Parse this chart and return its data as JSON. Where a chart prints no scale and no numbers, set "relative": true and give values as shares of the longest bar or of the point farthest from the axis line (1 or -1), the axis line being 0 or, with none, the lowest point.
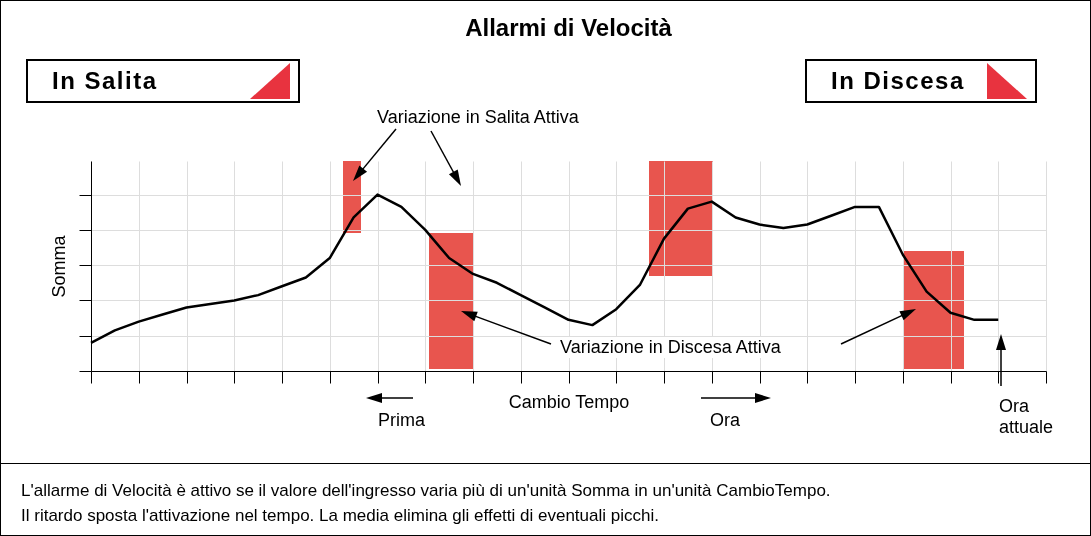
{
  "chart_data": {
    "type": "line",
    "title": "Allarmi di Velocità",
    "xlabel": "Cambio Tempo",
    "ylabel": "Somma",
    "relative": true,
    "grid": true,
    "tick_labels": false,
    "marker": "none",
    "line_style": "solid",
    "categories": [
      null,
      null,
      null,
      null,
      null,
      null,
      null,
      null,
      null,
      null,
      null,
      null,
      null,
      null,
      null,
      null,
      null,
      null,
      null,
      null,
      null,
      null,
      null,
      null,
      null,
      null,
      null,
      null,
      null,
      null,
      null,
      null,
      null,
      null,
      null,
      null,
      null,
      null,
      null,
      null,
      null
    ],
    "series": [
      {
        "color": "#000000",
        "values": [
          0.16,
          0.23,
          0.28,
          0.32,
          0.36,
          0.38,
          0.4,
          0.43,
          0.48,
          0.53,
          0.64,
          0.87,
          1,
          0.93,
          0.8,
          0.64,
          0.55,
          0.5,
          0.43,
          0.36,
          0.29,
          0.26,
          0.35,
          0.49,
          0.75,
          0.92,
          0.96,
          0.87,
          0.83,
          0.81,
          0.83,
          0.88,
          0.93,
          0.93,
          0.66,
          0.45,
          0.33,
          0.29,
          0.29,
          null,
          null
        ]
      }
    ],
    "annotations": [
      "In Salita",
      "In Discesa",
      "Variazione in Salita Attiva",
      "Variazione in Discesa Attiva",
      "Prima",
      "Ora",
      "Ora attuale",
      "L'allarme di Velocità è attivo se il valore dell'ingresso varia più di un'unità Somma in un'unità CambioTempo.",
      "Il ritardo sposta l'attivazione nel tempo.  La media elimina gli effetti di eventuali picchi."
    ]
  }
}
